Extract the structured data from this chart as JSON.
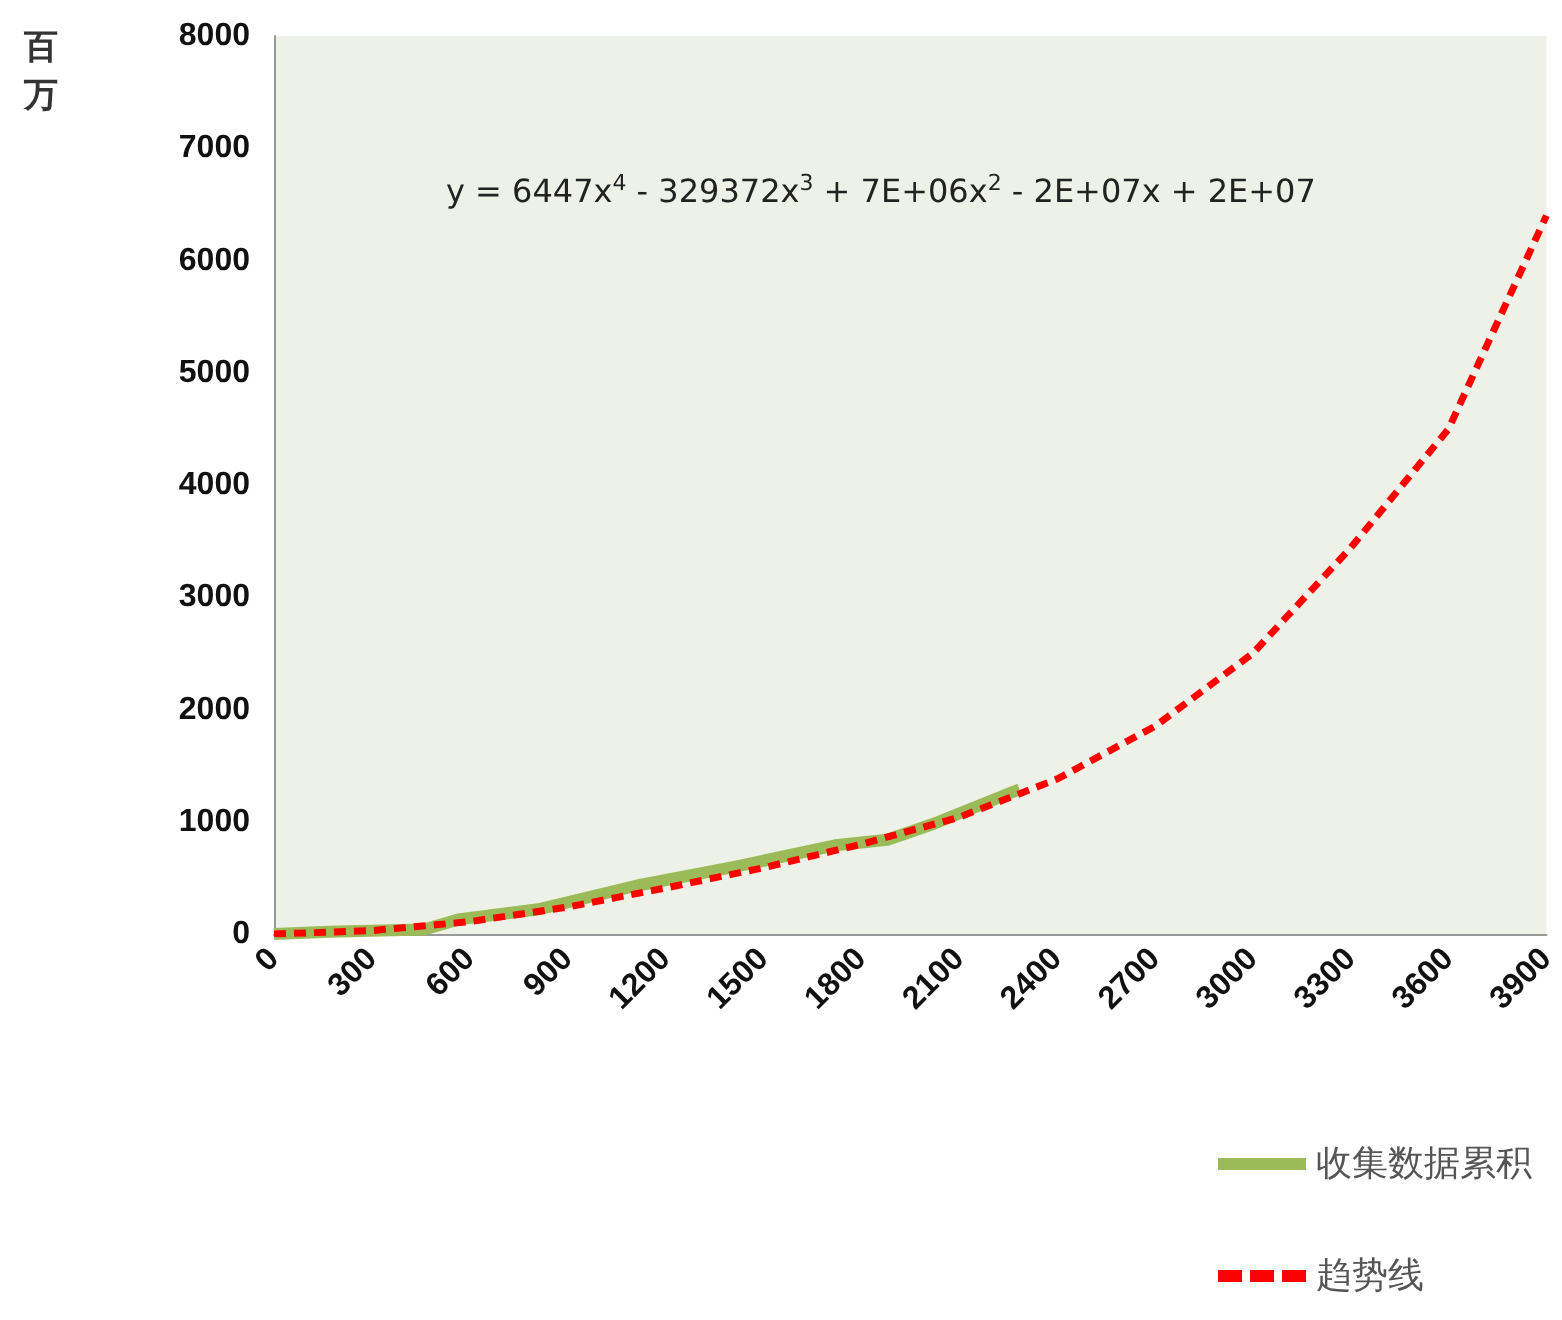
{
  "chart_data": {
    "type": "line",
    "ylabel": "百万",
    "xlim": [
      0,
      3900
    ],
    "xticks": [
      0,
      300,
      600,
      900,
      1200,
      1500,
      1800,
      2100,
      2400,
      2700,
      3000,
      3300,
      3600,
      3900
    ],
    "ylim": [
      0,
      8000
    ],
    "yticks": [
      0,
      1000,
      2000,
      3000,
      4000,
      5000,
      6000,
      7000,
      8000
    ],
    "grid": false,
    "legend": "bottom right",
    "marker": "none",
    "annotations": [
      "y = 6447x$^{4}$ - 329372x$^{3}$ + 7E+06x$^{2}$ - 2E+07x + 2E+07"
    ],
    "series": [
      {
        "name": "收集数据累积",
        "color": "#9bbb59",
        "line_style": "solid",
        "x": [
          0,
          170,
          460,
          565,
          810,
          1110,
          1415,
          1720,
          1880,
          2020,
          2285
        ],
        "values": [
          0,
          20,
          40,
          130,
          220,
          430,
          600,
          790,
          840,
          980,
          1290
        ]
      },
      {
        "name": "趋势线",
        "color": "#ff0000",
        "line_style": "dashed",
        "x": [
          0,
          300,
          600,
          900,
          1200,
          1500,
          1800,
          2100,
          2400,
          2700,
          3000,
          3300,
          3600,
          3900
        ],
        "values": [
          0,
          30,
          110,
          240,
          410,
          590,
          800,
          1040,
          1380,
          1850,
          2500,
          3440,
          4500,
          6400
        ]
      }
    ]
  }
}
